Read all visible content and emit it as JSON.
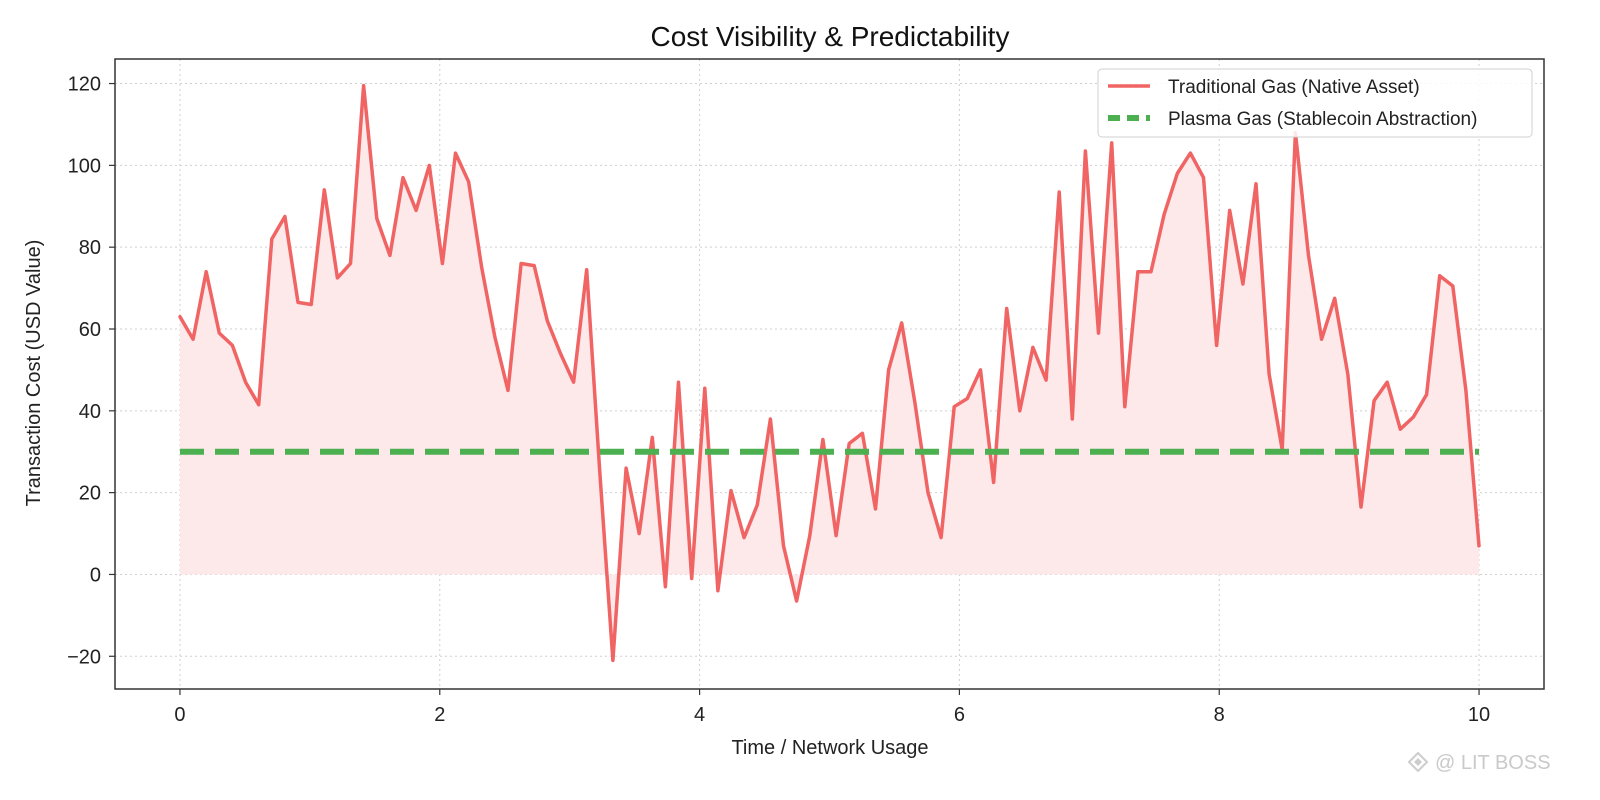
{
  "chart_data": {
    "type": "line",
    "title": "Cost Visibility & Predictability",
    "xlabel": "Time / Network Usage",
    "ylabel": "Transaction Cost (USD Value)",
    "xlim": [
      -0.5,
      10.5
    ],
    "ylim": [
      -28,
      126
    ],
    "xticks": [
      0,
      2,
      4,
      6,
      8,
      10
    ],
    "yticks": [
      -20,
      0,
      20,
      40,
      60,
      80,
      100,
      120
    ],
    "x_tick_labels": [
      "0",
      "2",
      "4",
      "6",
      "8",
      "10"
    ],
    "y_tick_labels": [
      "−20",
      "0",
      "20",
      "40",
      "60",
      "80",
      "100",
      "120"
    ],
    "grid": true,
    "legend_position": "top-right",
    "series": [
      {
        "name": "Traditional Gas (Native Asset)",
        "style": "solid",
        "color": "#f06464",
        "fill_color": "#fde8ea",
        "fill_to_zero": true,
        "x": [
          0,
          0.101,
          0.202,
          0.303,
          0.404,
          0.505,
          0.606,
          0.707,
          0.808,
          0.909,
          1.01,
          1.111,
          1.212,
          1.313,
          1.414,
          1.515,
          1.616,
          1.717,
          1.818,
          1.919,
          2.02,
          2.121,
          2.222,
          2.323,
          2.424,
          2.525,
          2.626,
          2.727,
          2.828,
          2.929,
          3.03,
          3.131,
          3.232,
          3.333,
          3.434,
          3.535,
          3.636,
          3.737,
          3.838,
          3.939,
          4.04,
          4.141,
          4.242,
          4.343,
          4.444,
          4.545,
          4.646,
          4.747,
          4.848,
          4.949,
          5.051,
          5.152,
          5.253,
          5.354,
          5.455,
          5.556,
          5.657,
          5.758,
          5.859,
          5.96,
          6.061,
          6.162,
          6.263,
          6.364,
          6.465,
          6.566,
          6.667,
          6.768,
          6.869,
          6.97,
          7.071,
          7.172,
          7.273,
          7.374,
          7.475,
          7.576,
          7.677,
          7.778,
          7.879,
          7.98,
          8.081,
          8.182,
          8.283,
          8.384,
          8.485,
          8.586,
          8.687,
          8.788,
          8.889,
          8.99,
          9.091,
          9.192,
          9.293,
          9.394,
          9.495,
          9.596,
          9.697,
          9.798,
          9.899,
          10
        ],
        "y": [
          63,
          57.5,
          74,
          59,
          56,
          47,
          41.5,
          82,
          87.5,
          66.5,
          66,
          94,
          72.5,
          76,
          119.5,
          87,
          78,
          97,
          89,
          100,
          76,
          103,
          96,
          75,
          58,
          45,
          76,
          75.5,
          62,
          54,
          47,
          74.5,
          25,
          -21,
          26,
          10,
          33.5,
          -3,
          47,
          -1,
          45.5,
          -4,
          20.5,
          9,
          17,
          38,
          7,
          -6.5,
          9.5,
          33,
          9.5,
          32,
          34.5,
          16,
          50,
          61.5,
          42,
          20,
          9,
          41,
          43,
          50,
          22.5,
          65,
          40,
          55.5,
          47.5,
          93.5,
          38,
          103.5,
          59,
          105.5,
          41,
          74,
          74,
          88,
          98,
          103,
          97,
          56,
          89,
          71,
          95.5,
          49,
          30.5,
          108,
          78,
          57.5,
          67.5,
          49,
          16.5,
          42.5,
          47,
          35.5,
          38.5,
          44,
          73,
          70.5,
          45,
          7
        ]
      },
      {
        "name": "Plasma Gas (Stablecoin Abstraction)",
        "style": "dashed",
        "color": "#4caf50",
        "x": [
          0,
          10
        ],
        "y": [
          30,
          30
        ]
      }
    ]
  },
  "watermark": {
    "text": "@ LIT BOSS"
  }
}
